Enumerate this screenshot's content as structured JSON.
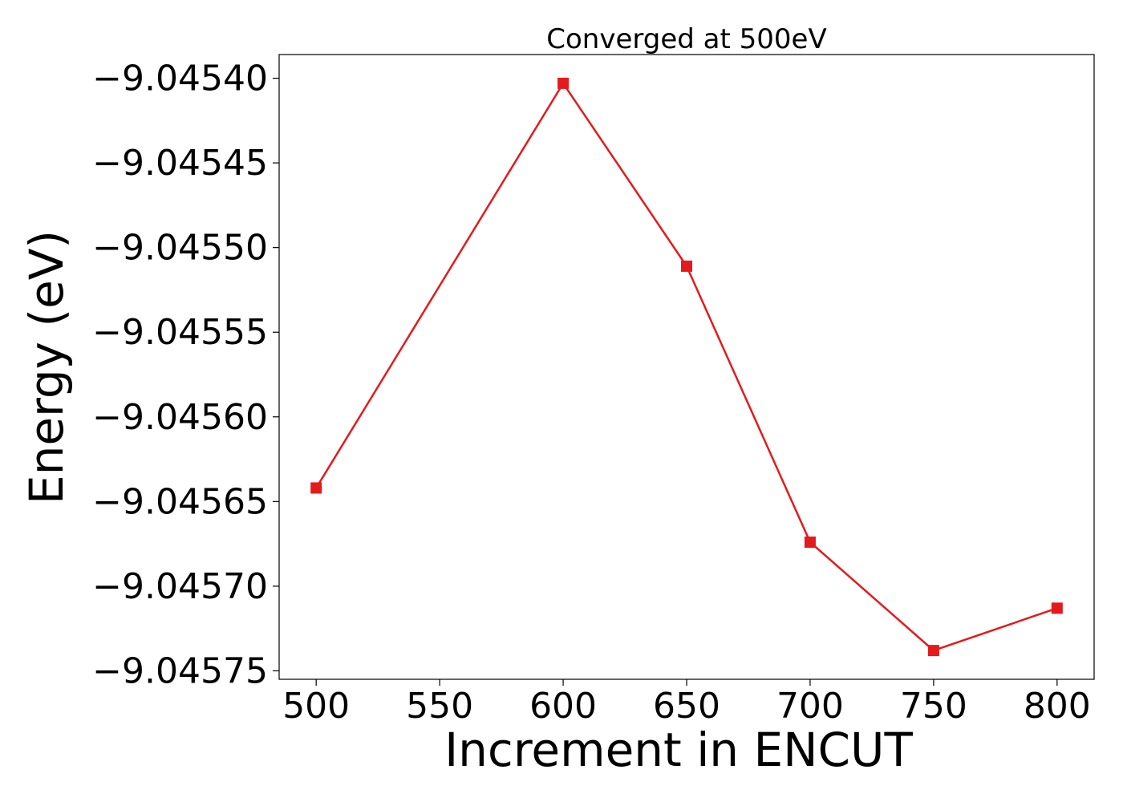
{
  "chart_data": {
    "type": "line",
    "title": "Converged at 500eV",
    "xlabel": "Increment in ENCUT",
    "ylabel": "Energy (eV)",
    "x": [
      500,
      600,
      650,
      700,
      750,
      800
    ],
    "series": [
      {
        "values": [
          -9.045642,
          -9.045403,
          -9.045511,
          -9.045674,
          -9.045738,
          -9.045713
        ],
        "color": "#e41a1c",
        "marker": "square"
      }
    ],
    "xticks": [
      500,
      550,
      600,
      650,
      700,
      750,
      800
    ],
    "xtick_labels": [
      "500",
      "550",
      "600",
      "650",
      "700",
      "750",
      "800"
    ],
    "yticks": [
      -9.0454,
      -9.04545,
      -9.0455,
      -9.04555,
      -9.0456,
      -9.04565,
      -9.0457,
      -9.04575
    ],
    "ytick_labels": [
      "−9.04540",
      "−9.04545",
      "−9.04550",
      "−9.04555",
      "−9.04560",
      "−9.04565",
      "−9.04570",
      "−9.04575"
    ],
    "xlim": [
      485,
      815
    ],
    "ylim": [
      -9.045755,
      -9.045386
    ],
    "grid": false,
    "legend": "none"
  }
}
